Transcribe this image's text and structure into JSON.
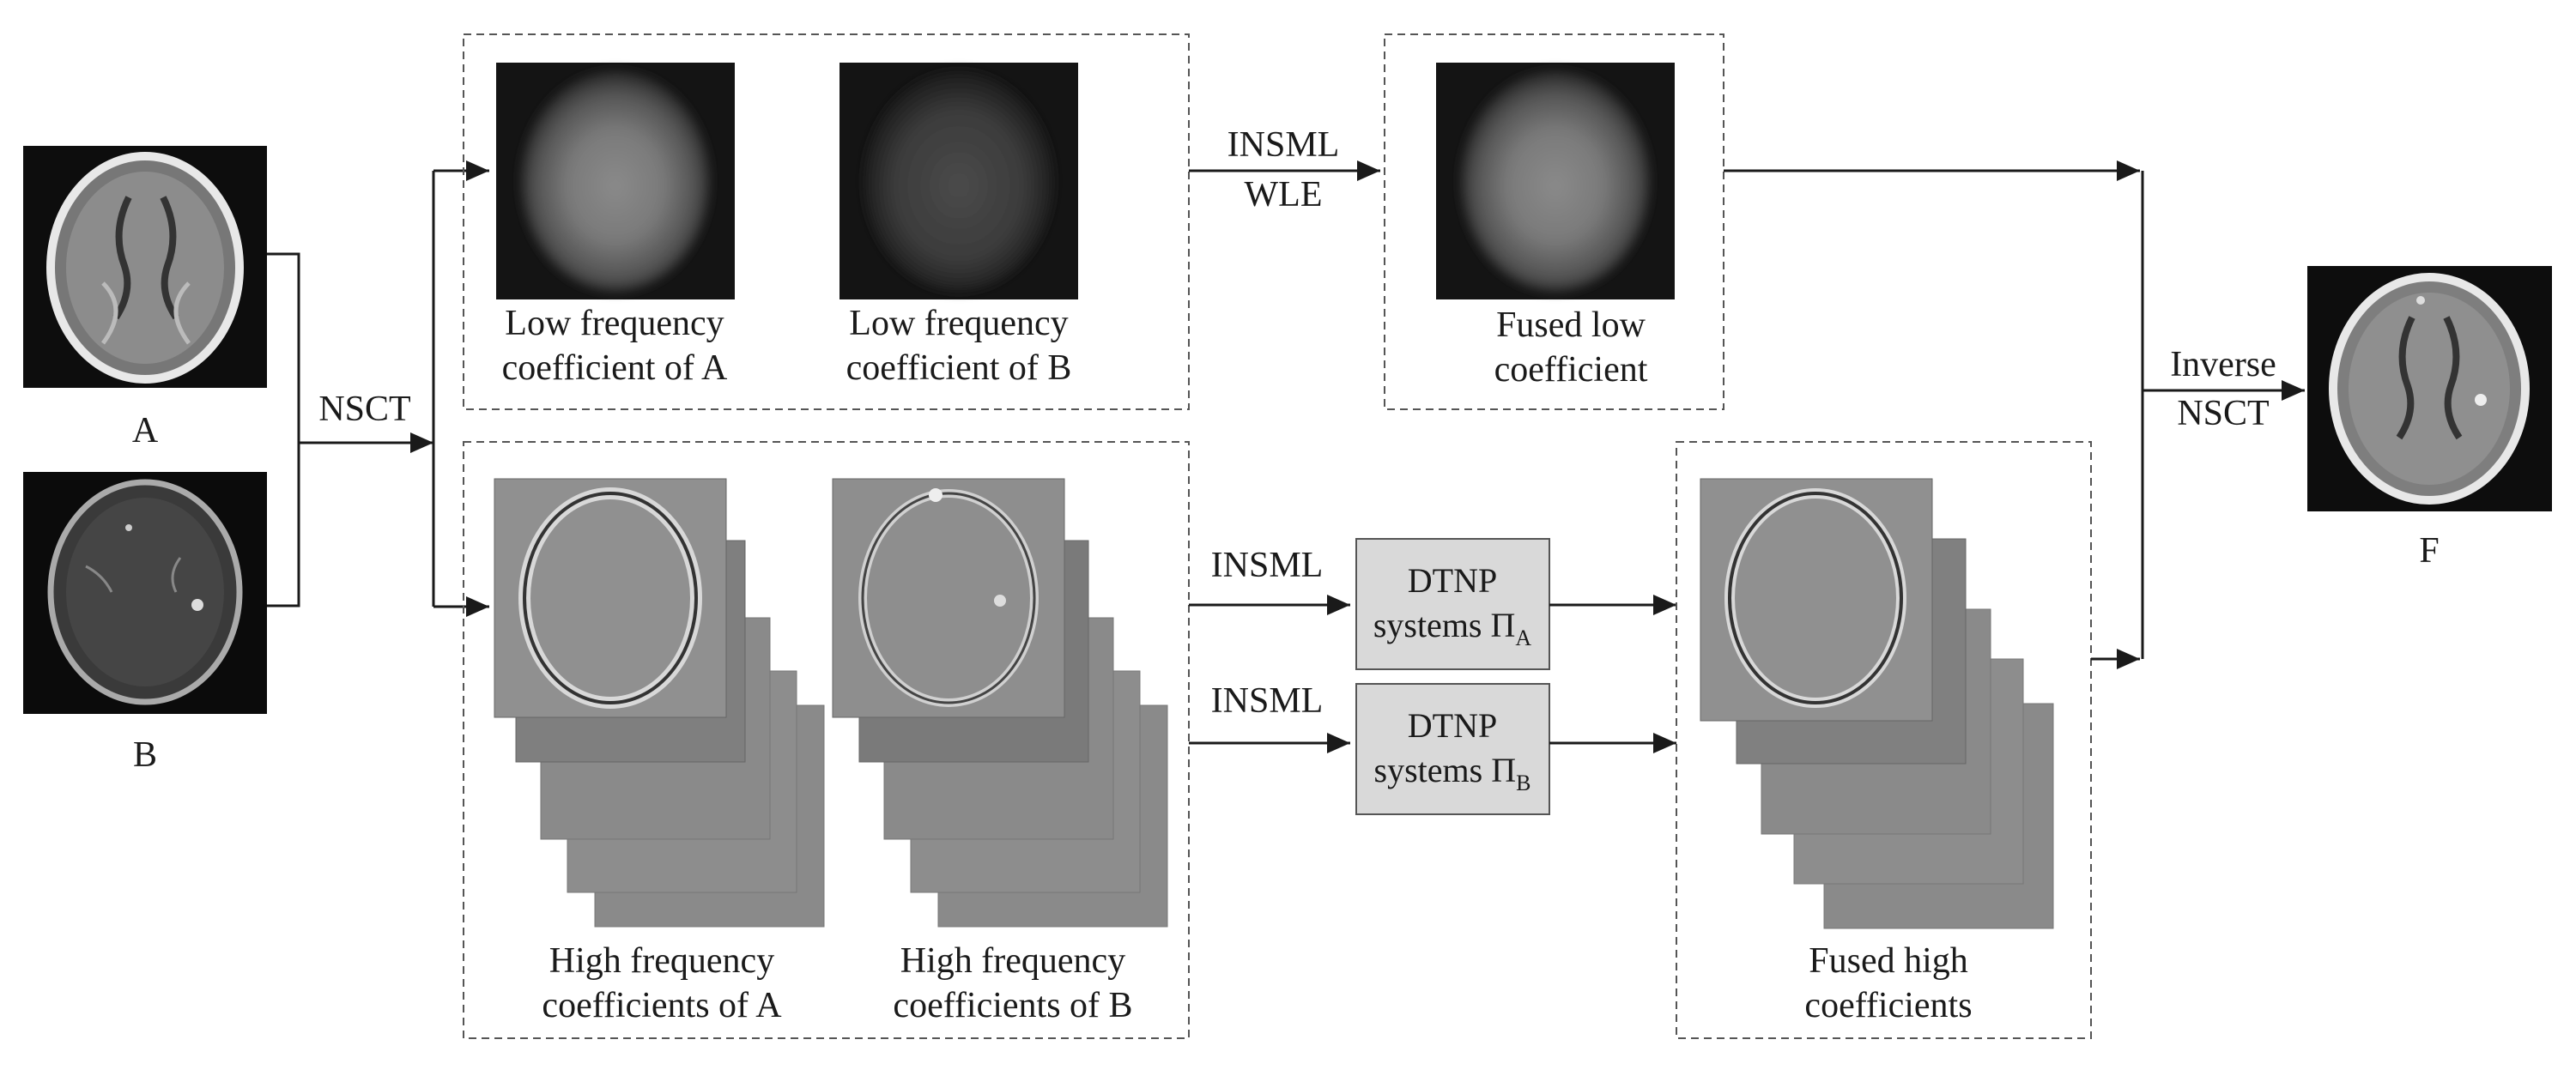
{
  "inputs": {
    "a_label": "A",
    "b_label": "B"
  },
  "output": {
    "f_label": "F"
  },
  "decomposition": {
    "label": "NSCT"
  },
  "low_band": {
    "coef_a_line1": "Low frequency",
    "coef_a_line2": "coefficient of A",
    "coef_b_line1": "Low frequency",
    "coef_b_line2": "coefficient of B",
    "rule_line1": "INSML",
    "rule_line2": "WLE",
    "fused_line1": "Fused low",
    "fused_line2": "coefficient"
  },
  "high_band": {
    "coef_a_line1": "High frequency",
    "coef_a_line2": "coefficients of A",
    "coef_b_line1": "High frequency",
    "coef_b_line2": "coefficients of B",
    "rule_a": "INSML",
    "rule_b": "INSML",
    "system_a": {
      "line1": "DTNP",
      "line2": "systems Π",
      "subscript": "A"
    },
    "system_b": {
      "line1": "DTNP",
      "line2": "systems Π",
      "subscript": "B"
    },
    "fused_line1": "Fused high",
    "fused_line2": "coefficients"
  },
  "reconstruction": {
    "line1": "Inverse",
    "line2": "NSCT"
  }
}
